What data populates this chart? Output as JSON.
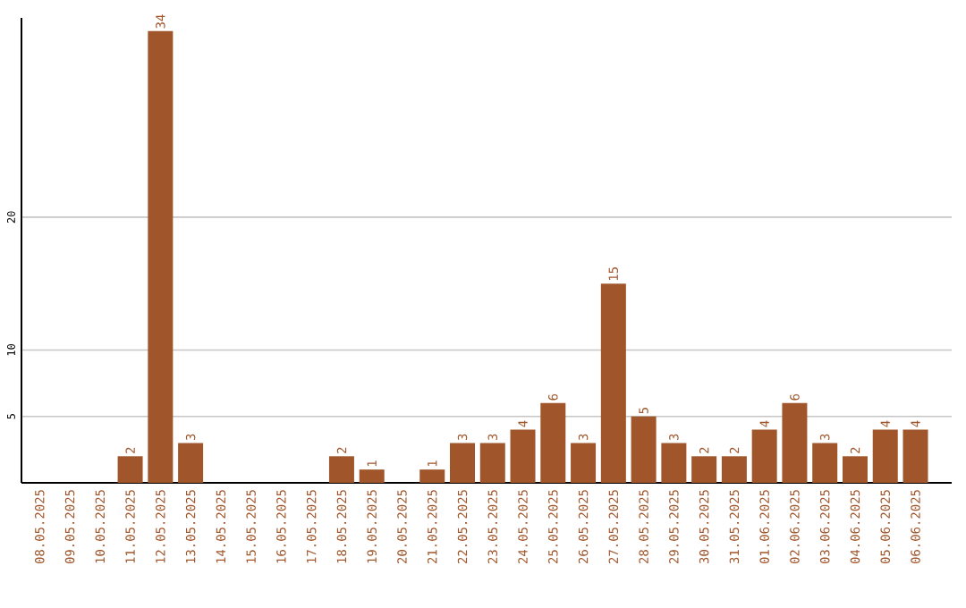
{
  "chart_data": {
    "type": "bar",
    "categories": [
      "08.05.2025",
      "09.05.2025",
      "10.05.2025",
      "11.05.2025",
      "12.05.2025",
      "13.05.2025",
      "14.05.2025",
      "15.05.2025",
      "16.05.2025",
      "17.05.2025",
      "18.05.2025",
      "19.05.2025",
      "20.05.2025",
      "21.05.2025",
      "22.05.2025",
      "23.05.2025",
      "24.05.2025",
      "25.05.2025",
      "26.05.2025",
      "27.05.2025",
      "28.05.2025",
      "29.05.2025",
      "30.05.2025",
      "31.05.2025",
      "01.06.2025",
      "02.06.2025",
      "03.06.2025",
      "04.06.2025",
      "05.06.2025",
      "06.06.2025"
    ],
    "values": [
      null,
      null,
      null,
      2,
      34,
      3,
      null,
      null,
      null,
      null,
      2,
      1,
      null,
      1,
      3,
      3,
      4,
      6,
      3,
      15,
      5,
      3,
      2,
      2,
      4,
      6,
      3,
      2,
      4,
      4
    ],
    "color": "#a0562a",
    "ylim": [
      0,
      35
    ],
    "yticks": [
      5,
      10,
      20
    ],
    "grid": "y",
    "data_labels": true
  }
}
